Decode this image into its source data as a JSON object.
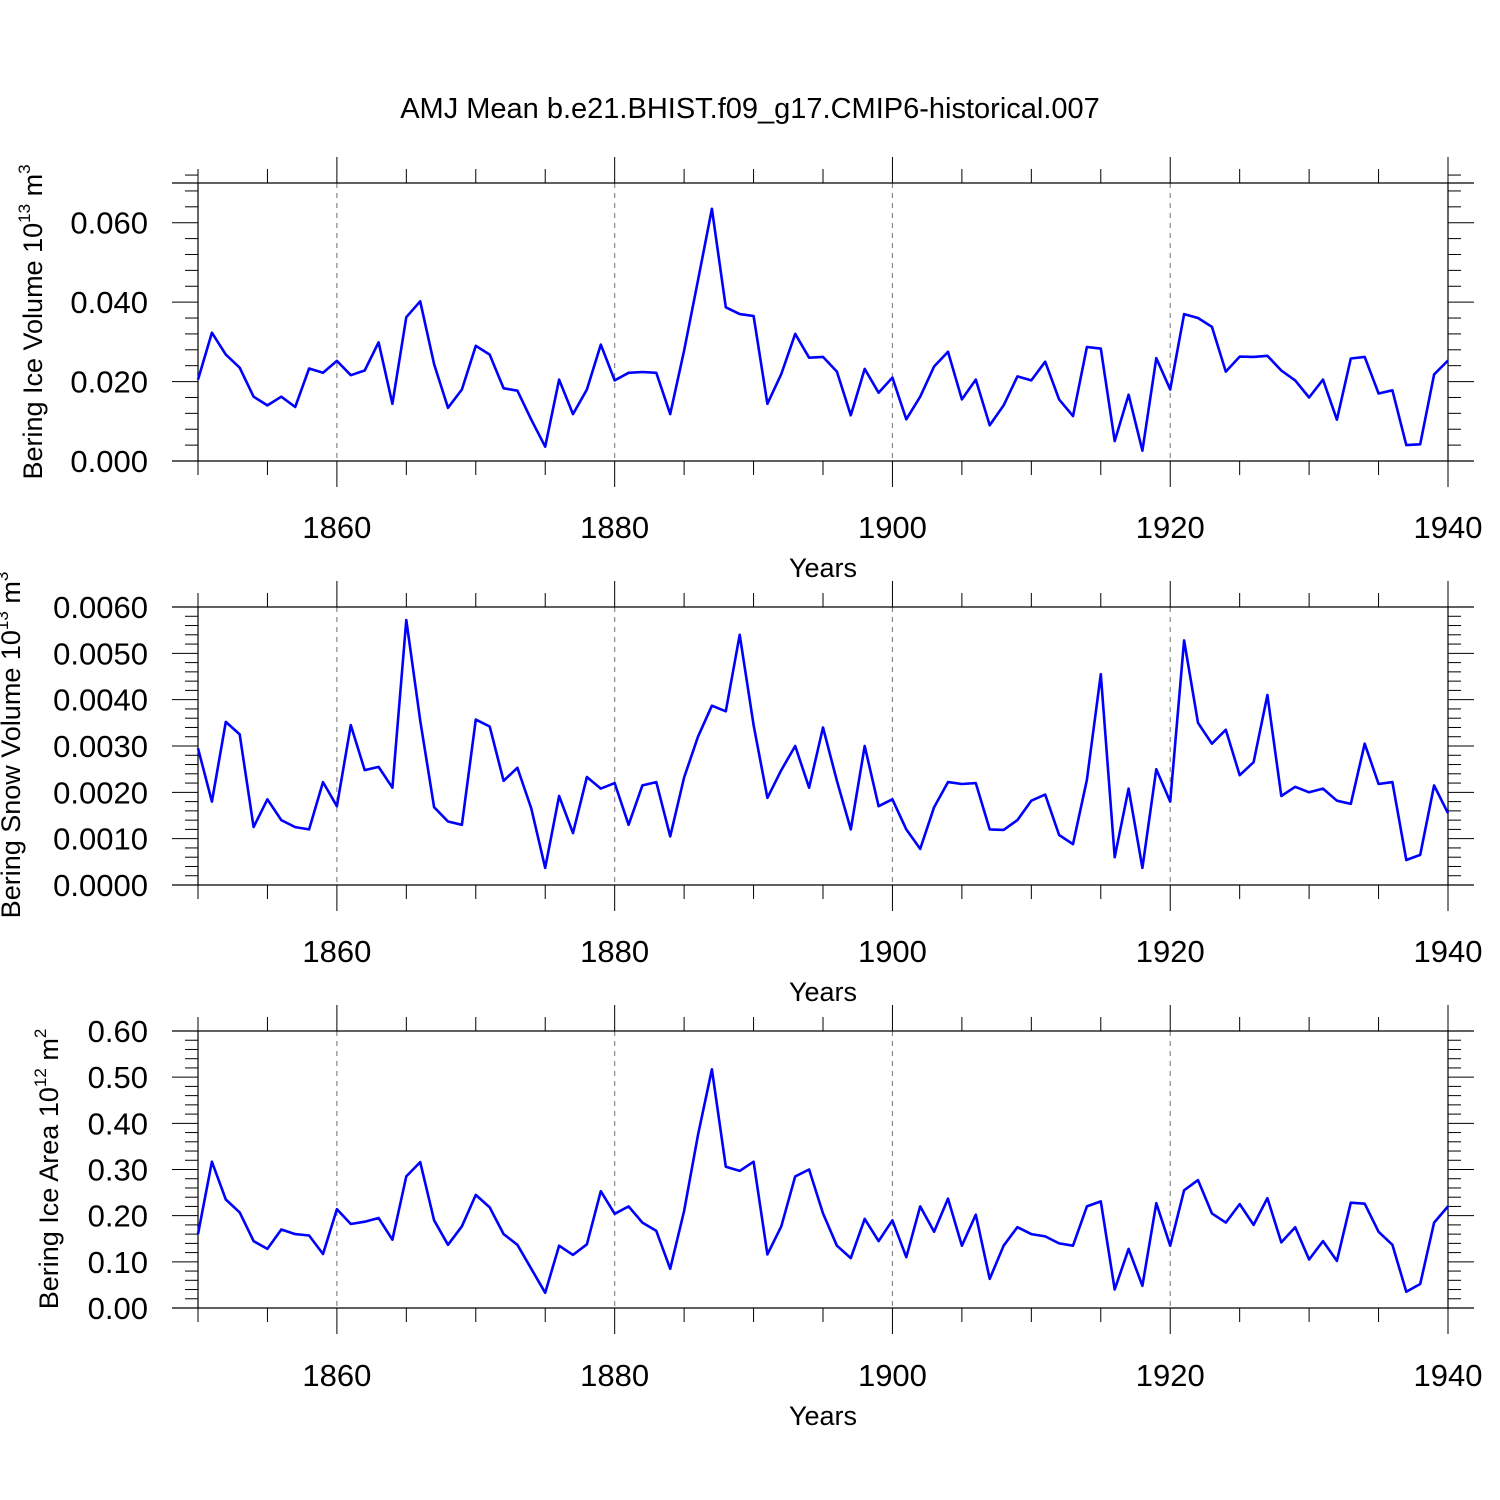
{
  "title": "AMJ Mean b.e21.BHIST.f09_g17.CMIP6-historical.007",
  "chart_data": [
    {
      "type": "line",
      "ylabel": "Bering Ice Volume",
      "yunit": "10",
      "yunit_exp": "13",
      "yunit_base": "m",
      "yunit_base_exp": "3",
      "xlabel": "Years",
      "xlim": [
        1850,
        1940
      ],
      "ylim": [
        0,
        0.07
      ],
      "xticks": [
        1860,
        1880,
        1900,
        1920,
        1940
      ],
      "xtick_labels": [
        "1860",
        "1880",
        "1900",
        "1920",
        "1940"
      ],
      "yticks": [
        0,
        0.02,
        0.04,
        0.06
      ],
      "ytick_labels": [
        "0.000",
        "0.020",
        "0.040",
        "0.060"
      ],
      "grid": "dashed vertical at labeled years",
      "x": [
        1850,
        1851,
        1852,
        1853,
        1854,
        1855,
        1856,
        1857,
        1858,
        1859,
        1860,
        1861,
        1862,
        1863,
        1864,
        1865,
        1866,
        1867,
        1868,
        1869,
        1870,
        1871,
        1872,
        1873,
        1874,
        1875,
        1876,
        1877,
        1878,
        1879,
        1880,
        1881,
        1882,
        1883,
        1884,
        1885,
        1886,
        1887,
        1888,
        1889,
        1890,
        1891,
        1892,
        1893,
        1894,
        1895,
        1896,
        1897,
        1898,
        1899,
        1900,
        1901,
        1902,
        1903,
        1904,
        1905,
        1906,
        1907,
        1908,
        1909,
        1910,
        1911,
        1912,
        1913,
        1914,
        1915,
        1916,
        1917,
        1918,
        1919,
        1920,
        1921,
        1922,
        1923,
        1924,
        1925,
        1926,
        1927,
        1928,
        1929,
        1930,
        1931,
        1932,
        1933,
        1934,
        1935,
        1936,
        1937,
        1938,
        1939,
        1940
      ],
      "values": [
        0.0205,
        0.0323,
        0.0268,
        0.0235,
        0.0162,
        0.014,
        0.0162,
        0.0136,
        0.0233,
        0.0222,
        0.0252,
        0.0216,
        0.0228,
        0.0299,
        0.0144,
        0.0362,
        0.0402,
        0.0244,
        0.0134,
        0.018,
        0.029,
        0.0268,
        0.0183,
        0.0177,
        0.0104,
        0.0036,
        0.0205,
        0.0118,
        0.018,
        0.0293,
        0.0203,
        0.0222,
        0.0224,
        0.0222,
        0.0118,
        0.0278,
        0.0455,
        0.0635,
        0.0387,
        0.037,
        0.0365,
        0.0144,
        0.0219,
        0.032,
        0.026,
        0.0262,
        0.0225,
        0.0115,
        0.0232,
        0.0172,
        0.021,
        0.0105,
        0.0162,
        0.0238,
        0.0275,
        0.0155,
        0.0205,
        0.009,
        0.014,
        0.0213,
        0.0203,
        0.025,
        0.0155,
        0.0113,
        0.0287,
        0.0283,
        0.005,
        0.0167,
        0.0026,
        0.0259,
        0.018,
        0.037,
        0.036,
        0.0338,
        0.0225,
        0.0263,
        0.0262,
        0.0265,
        0.0228,
        0.0203,
        0.016,
        0.0205,
        0.0104,
        0.0258,
        0.0262,
        0.017,
        0.0178,
        0.004,
        0.0042,
        0.0218,
        0.0253
      ]
    },
    {
      "type": "line",
      "ylabel": "Bering Snow Volume",
      "yunit": "10",
      "yunit_exp": "13",
      "yunit_base": "m",
      "yunit_base_exp": "3",
      "xlabel": "Years",
      "xlim": [
        1850,
        1940
      ],
      "ylim": [
        0,
        0.006
      ],
      "xticks": [
        1860,
        1880,
        1900,
        1920,
        1940
      ],
      "xtick_labels": [
        "1860",
        "1880",
        "1900",
        "1920",
        "1940"
      ],
      "yticks": [
        0,
        0.001,
        0.002,
        0.003,
        0.004,
        0.005,
        0.006
      ],
      "ytick_labels": [
        "0.0000",
        "0.0010",
        "0.0020",
        "0.0030",
        "0.0040",
        "0.0050",
        "0.0060"
      ],
      "grid": "dashed vertical at labeled years",
      "x": [
        1850,
        1851,
        1852,
        1853,
        1854,
        1855,
        1856,
        1857,
        1858,
        1859,
        1860,
        1861,
        1862,
        1863,
        1864,
        1865,
        1866,
        1867,
        1868,
        1869,
        1870,
        1871,
        1872,
        1873,
        1874,
        1875,
        1876,
        1877,
        1878,
        1879,
        1880,
        1881,
        1882,
        1883,
        1884,
        1885,
        1886,
        1887,
        1888,
        1889,
        1890,
        1891,
        1892,
        1893,
        1894,
        1895,
        1896,
        1897,
        1898,
        1899,
        1900,
        1901,
        1902,
        1903,
        1904,
        1905,
        1906,
        1907,
        1908,
        1909,
        1910,
        1911,
        1912,
        1913,
        1914,
        1915,
        1916,
        1917,
        1918,
        1919,
        1920,
        1921,
        1922,
        1923,
        1924,
        1925,
        1926,
        1927,
        1928,
        1929,
        1930,
        1931,
        1932,
        1933,
        1934,
        1935,
        1936,
        1937,
        1938,
        1939,
        1940
      ],
      "values": [
        0.00295,
        0.0018,
        0.00352,
        0.00325,
        0.00125,
        0.00185,
        0.0014,
        0.00125,
        0.0012,
        0.00222,
        0.0017,
        0.00345,
        0.00248,
        0.00255,
        0.0021,
        0.00572,
        0.00355,
        0.00168,
        0.00137,
        0.0013,
        0.00357,
        0.00342,
        0.00225,
        0.00253,
        0.00165,
        0.00037,
        0.00192,
        0.00112,
        0.00233,
        0.00208,
        0.0022,
        0.0013,
        0.00215,
        0.00222,
        0.00105,
        0.00232,
        0.0032,
        0.00387,
        0.00375,
        0.0054,
        0.00345,
        0.00188,
        0.00248,
        0.003,
        0.0021,
        0.0034,
        0.00225,
        0.0012,
        0.003,
        0.0017,
        0.00185,
        0.0012,
        0.00078,
        0.00168,
        0.00222,
        0.00218,
        0.0022,
        0.0012,
        0.00119,
        0.0014,
        0.00182,
        0.00195,
        0.00108,
        0.00088,
        0.00227,
        0.00455,
        0.0006,
        0.00208,
        0.00037,
        0.0025,
        0.0018,
        0.00528,
        0.0035,
        0.00305,
        0.00335,
        0.00237,
        0.00265,
        0.0041,
        0.00192,
        0.00212,
        0.002,
        0.00208,
        0.00182,
        0.00175,
        0.00305,
        0.00218,
        0.00222,
        0.00054,
        0.00065,
        0.00215,
        0.00155
      ]
    },
    {
      "type": "line",
      "ylabel": "Bering Ice Area",
      "yunit": "10",
      "yunit_exp": "12",
      "yunit_base": "m",
      "yunit_base_exp": "2",
      "xlabel": "Years",
      "xlim": [
        1850,
        1940
      ],
      "ylim": [
        0,
        0.6
      ],
      "xticks": [
        1860,
        1880,
        1900,
        1920,
        1940
      ],
      "xtick_labels": [
        "1860",
        "1880",
        "1900",
        "1920",
        "1940"
      ],
      "yticks": [
        0,
        0.1,
        0.2,
        0.3,
        0.4,
        0.5,
        0.6
      ],
      "ytick_labels": [
        "0.00",
        "0.10",
        "0.20",
        "0.30",
        "0.40",
        "0.50",
        "0.60"
      ],
      "grid": "dashed vertical at labeled years",
      "x": [
        1850,
        1851,
        1852,
        1853,
        1854,
        1855,
        1856,
        1857,
        1858,
        1859,
        1860,
        1861,
        1862,
        1863,
        1864,
        1865,
        1866,
        1867,
        1868,
        1869,
        1870,
        1871,
        1872,
        1873,
        1874,
        1875,
        1876,
        1877,
        1878,
        1879,
        1880,
        1881,
        1882,
        1883,
        1884,
        1885,
        1886,
        1887,
        1888,
        1889,
        1890,
        1891,
        1892,
        1893,
        1894,
        1895,
        1896,
        1897,
        1898,
        1899,
        1900,
        1901,
        1902,
        1903,
        1904,
        1905,
        1906,
        1907,
        1908,
        1909,
        1910,
        1911,
        1912,
        1913,
        1914,
        1915,
        1916,
        1917,
        1918,
        1919,
        1920,
        1921,
        1922,
        1923,
        1924,
        1925,
        1926,
        1927,
        1928,
        1929,
        1930,
        1931,
        1932,
        1933,
        1934,
        1935,
        1936,
        1937,
        1938,
        1939,
        1940
      ],
      "values": [
        0.16,
        0.317,
        0.235,
        0.207,
        0.145,
        0.128,
        0.17,
        0.16,
        0.157,
        0.117,
        0.214,
        0.182,
        0.187,
        0.195,
        0.148,
        0.285,
        0.316,
        0.19,
        0.137,
        0.177,
        0.245,
        0.218,
        0.16,
        0.137,
        0.085,
        0.033,
        0.135,
        0.115,
        0.138,
        0.253,
        0.204,
        0.22,
        0.185,
        0.167,
        0.085,
        0.21,
        0.375,
        0.517,
        0.306,
        0.297,
        0.317,
        0.116,
        0.177,
        0.285,
        0.3,
        0.205,
        0.135,
        0.108,
        0.193,
        0.145,
        0.19,
        0.11,
        0.22,
        0.165,
        0.237,
        0.135,
        0.202,
        0.063,
        0.135,
        0.175,
        0.16,
        0.155,
        0.14,
        0.135,
        0.22,
        0.231,
        0.04,
        0.128,
        0.048,
        0.227,
        0.135,
        0.255,
        0.277,
        0.205,
        0.185,
        0.225,
        0.18,
        0.238,
        0.142,
        0.175,
        0.105,
        0.145,
        0.102,
        0.228,
        0.226,
        0.165,
        0.137,
        0.035,
        0.052,
        0.185,
        0.22
      ]
    }
  ]
}
